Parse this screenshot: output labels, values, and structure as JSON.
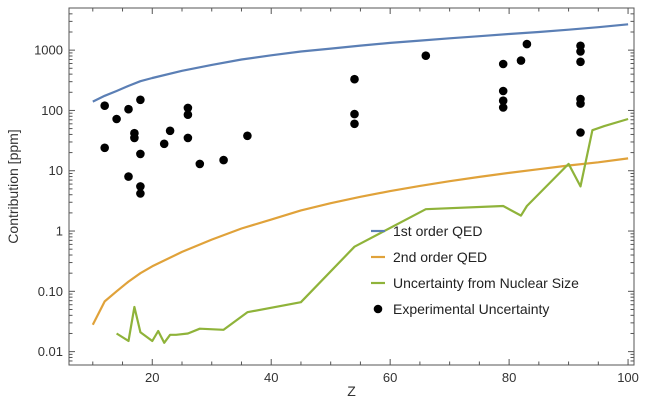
{
  "chart_data": {
    "type": "scatter",
    "title": "",
    "xlabel": "Z",
    "ylabel": "Contribution [ppm]",
    "xlim": [
      6,
      101
    ],
    "ylim": [
      0.006,
      5000
    ],
    "yscale": "log",
    "grid": false,
    "legend_position": "bottom-right",
    "x_ticks": [
      20,
      40,
      60,
      80,
      100
    ],
    "y_ticks": [
      {
        "value": 0.01,
        "label": "0.01"
      },
      {
        "value": 0.1,
        "label": "0.10"
      },
      {
        "value": 1,
        "label": "1"
      },
      {
        "value": 10,
        "label": "10"
      },
      {
        "value": 100,
        "label": "100"
      },
      {
        "value": 1000,
        "label": "1000"
      }
    ],
    "series": [
      {
        "name": "1st order QED",
        "kind": "line",
        "color": "#5b7fb5",
        "points": [
          [
            10,
            140
          ],
          [
            12,
            175
          ],
          [
            14,
            210
          ],
          [
            16,
            255
          ],
          [
            18,
            305
          ],
          [
            20,
            345
          ],
          [
            25,
            455
          ],
          [
            30,
            570
          ],
          [
            35,
            700
          ],
          [
            40,
            820
          ],
          [
            45,
            950
          ],
          [
            50,
            1060
          ],
          [
            55,
            1190
          ],
          [
            60,
            1320
          ],
          [
            65,
            1440
          ],
          [
            70,
            1570
          ],
          [
            75,
            1700
          ],
          [
            80,
            1850
          ],
          [
            85,
            2000
          ],
          [
            90,
            2180
          ],
          [
            95,
            2400
          ],
          [
            100,
            2680
          ]
        ]
      },
      {
        "name": "2nd order QED",
        "kind": "line",
        "color": "#e0a23a",
        "points": [
          [
            10,
            0.028
          ],
          [
            12,
            0.068
          ],
          [
            14,
            0.1
          ],
          [
            16,
            0.145
          ],
          [
            18,
            0.2
          ],
          [
            20,
            0.26
          ],
          [
            25,
            0.45
          ],
          [
            30,
            0.72
          ],
          [
            35,
            1.1
          ],
          [
            40,
            1.55
          ],
          [
            45,
            2.2
          ],
          [
            50,
            2.9
          ],
          [
            55,
            3.7
          ],
          [
            60,
            4.6
          ],
          [
            65,
            5.6
          ],
          [
            70,
            6.7
          ],
          [
            75,
            7.9
          ],
          [
            80,
            9.2
          ],
          [
            85,
            10.6
          ],
          [
            90,
            12.2
          ],
          [
            95,
            13.8
          ],
          [
            100,
            16
          ]
        ]
      },
      {
        "name": "Uncertainty from Nuclear Size",
        "kind": "line",
        "color": "#8fb33a",
        "points": [
          [
            14,
            0.02
          ],
          [
            16,
            0.015
          ],
          [
            17,
            0.055
          ],
          [
            18,
            0.021
          ],
          [
            20,
            0.015
          ],
          [
            21,
            0.022
          ],
          [
            22,
            0.014
          ],
          [
            23,
            0.019
          ],
          [
            24,
            0.019
          ],
          [
            26,
            0.02
          ],
          [
            28,
            0.024
          ],
          [
            32,
            0.023
          ],
          [
            36,
            0.045
          ],
          [
            45,
            0.066
          ],
          [
            54,
            0.55
          ],
          [
            66,
            2.3
          ],
          [
            79,
            2.6
          ],
          [
            82,
            1.8
          ],
          [
            83,
            2.6
          ],
          [
            90,
            13
          ],
          [
            92,
            5.5
          ],
          [
            94,
            47
          ],
          [
            96,
            55
          ],
          [
            100,
            72
          ]
        ]
      },
      {
        "name": "Experimental Uncertainty",
        "kind": "scatter",
        "color": "#000000",
        "points": [
          [
            12,
            24
          ],
          [
            12,
            120
          ],
          [
            14,
            72
          ],
          [
            16,
            8
          ],
          [
            16,
            105
          ],
          [
            17,
            35
          ],
          [
            17,
            42
          ],
          [
            18,
            150
          ],
          [
            18,
            19
          ],
          [
            18,
            5.5
          ],
          [
            18,
            4.2
          ],
          [
            22,
            28
          ],
          [
            23,
            46
          ],
          [
            26,
            35
          ],
          [
            26,
            85
          ],
          [
            26,
            110
          ],
          [
            28,
            13
          ],
          [
            32,
            15
          ],
          [
            36,
            38
          ],
          [
            54,
            330
          ],
          [
            54,
            87
          ],
          [
            54,
            60
          ],
          [
            66,
            810
          ],
          [
            79,
            590
          ],
          [
            79,
            210
          ],
          [
            79,
            145
          ],
          [
            79,
            112
          ],
          [
            82,
            670
          ],
          [
            83,
            1260
          ],
          [
            92,
            1180
          ],
          [
            92,
            950
          ],
          [
            92,
            640
          ],
          [
            92,
            155
          ],
          [
            92,
            130
          ],
          [
            92,
            43
          ]
        ]
      }
    ]
  }
}
